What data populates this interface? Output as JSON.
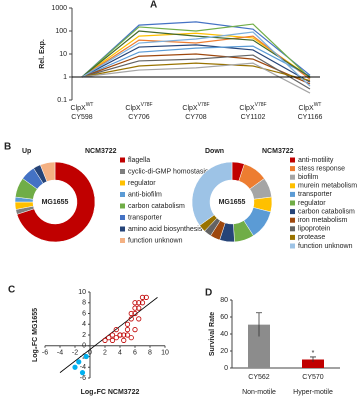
{
  "chart_data": [
    {
      "type": "line",
      "panel": "A",
      "ylabel": "Rel. Exp.",
      "log_y": true,
      "categories": [
        {
          "name": "ClpX",
          "sup": "WT",
          "strain": "CY598"
        },
        {
          "name": "ClpX",
          "sup": "V78F",
          "strain": "CY706"
        },
        {
          "name": "ClpX",
          "sup": "V78F",
          "strain": "CY708"
        },
        {
          "name": "ClpX",
          "sup": "V78F",
          "strain": "CY1102"
        },
        {
          "name": "ClpX",
          "sup": "WT",
          "strain": "CY1166"
        }
      ],
      "ylim": [
        0.1,
        1000
      ],
      "yticks": [
        0.1,
        1,
        10,
        100,
        1000
      ],
      "hline": 1,
      "series": [
        {
          "color": "#4472c4",
          "values": [
            1,
            180,
            250,
            120,
            1.2
          ]
        },
        {
          "color": "#70ad47",
          "values": [
            1,
            150,
            100,
            200,
            0.9
          ]
        },
        {
          "color": "#ffc000",
          "values": [
            1,
            60,
            80,
            50,
            1
          ]
        },
        {
          "color": "#ed7d31",
          "values": [
            1,
            40,
            30,
            60,
            0.8
          ]
        },
        {
          "color": "#264478",
          "values": [
            1,
            20,
            25,
            15,
            0.6
          ]
        },
        {
          "color": "#5b9bd5",
          "values": [
            1,
            12,
            18,
            22,
            1.1
          ]
        },
        {
          "color": "#9e480e",
          "values": [
            1,
            8,
            10,
            6,
            0.5
          ]
        },
        {
          "color": "#636363",
          "values": [
            1,
            5,
            6,
            9,
            0.3
          ]
        },
        {
          "color": "#997300",
          "values": [
            1,
            3,
            4,
            3,
            0.7
          ]
        },
        {
          "color": "#43682b",
          "values": [
            1,
            100,
            60,
            40,
            1
          ]
        },
        {
          "color": "#7cafdd",
          "values": [
            1,
            30,
            45,
            90,
            0.4
          ]
        },
        {
          "color": "#a5a5a5",
          "values": [
            1,
            2,
            2.5,
            4,
            0.2
          ]
        }
      ]
    },
    {
      "type": "donut",
      "panel": "B",
      "title": "Up",
      "subtitle": "NCM3722",
      "center": "MG1655",
      "categories": [
        "flagella",
        "cyclic-di-GMP homostasis",
        "regulator",
        "anti-biofilm",
        "carbon catabolism",
        "transporter",
        "amino acid biosynthesis",
        "function unknown"
      ],
      "values": [
        70,
        2,
        3,
        2,
        8,
        6,
        3,
        6
      ],
      "colors": [
        "#c00000",
        "#7f7f7f",
        "#ffc000",
        "#5b9bd5",
        "#70ad47",
        "#4472c4",
        "#264478",
        "#f4b183"
      ]
    },
    {
      "type": "donut",
      "title": "Down",
      "subtitle": "NCM3722",
      "center": "MG1655",
      "categories": [
        "anti-motility",
        "stess response",
        "biofilm",
        "murein metabolism",
        "transporter",
        "regulator",
        "carbon catabolism",
        "iron metabolism",
        "lipoprotein",
        "protease",
        "function unknown"
      ],
      "values": [
        5,
        10,
        8,
        6,
        12,
        8,
        6,
        4,
        3,
        3,
        35
      ],
      "colors": [
        "#c00000",
        "#ed7d31",
        "#a5a5a5",
        "#ffc000",
        "#5b9bd5",
        "#70ad47",
        "#264478",
        "#9e480e",
        "#636363",
        "#997300",
        "#9dc3e6"
      ]
    },
    {
      "type": "scatter",
      "panel": "C",
      "xlabel": "Log₂FC NCM3722",
      "ylabel": "Log₂FC MG1655",
      "xlim": [
        -6,
        10
      ],
      "xticks": [
        -6,
        -4,
        -2,
        0,
        2,
        4,
        6,
        8,
        10
      ],
      "ylim": [
        -6,
        10
      ],
      "yticks": [
        -6,
        -4,
        -2,
        0,
        2,
        4,
        6,
        8,
        10
      ],
      "series": [
        {
          "color": "#c00000",
          "filled": false,
          "x": [
            2.5,
            3,
            3.5,
            4,
            4.5,
            5,
            5,
            5.5,
            5.5,
            6,
            6,
            6,
            6.5,
            6.5,
            7,
            7,
            7.5,
            6,
            5,
            4,
            3.5,
            4.5,
            2,
            3,
            5.5,
            6.5
          ],
          "values": [
            1.5,
            2,
            3,
            2,
            2,
            3,
            4,
            5,
            6,
            6,
            7,
            8,
            7,
            8,
            8,
            9,
            9,
            3,
            2,
            2,
            1.5,
            1,
            1,
            1,
            1.5,
            5
          ]
        },
        {
          "color": "#00b0f0",
          "filled": true,
          "x": [
            -1.5,
            -2,
            -1,
            -0.5
          ],
          "values": [
            -3,
            -4,
            -5,
            -2
          ]
        }
      ],
      "trend_line": {
        "x": [
          -4,
          9
        ],
        "values": [
          -5,
          9
        ]
      }
    },
    {
      "type": "bar",
      "panel": "D",
      "ylabel": "Survival Rate",
      "categories": [
        "CY562",
        "CY570"
      ],
      "groups": [
        "Non-motile",
        "Hyper-motile"
      ],
      "values": [
        51,
        10
      ],
      "errors": [
        14,
        3
      ],
      "colors": [
        "#8c8c8c",
        "#c00000"
      ],
      "annotations": [
        null,
        "*"
      ],
      "ylim": [
        0,
        80
      ],
      "yticks": [
        0,
        20,
        40,
        60,
        80
      ]
    }
  ]
}
